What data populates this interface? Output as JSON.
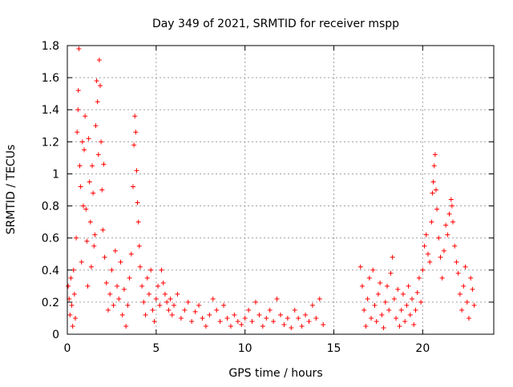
{
  "chart_data": {
    "type": "scatter",
    "title": "Day 349 of 2021, SRMTID for receiver mspp",
    "xlabel": "GPS time / hours",
    "ylabel": "SRMTID / TECUs",
    "xlim": [
      0,
      24
    ],
    "ylim": [
      0,
      1.8
    ],
    "xticks": [
      0,
      5,
      10,
      15,
      20
    ],
    "xtick_labels": [
      "0",
      "5",
      "10",
      "15",
      "20"
    ],
    "yticks": [
      0,
      0.2,
      0.4,
      0.6,
      0.8,
      1.0,
      1.2,
      1.4,
      1.6,
      1.8
    ],
    "ytick_labels": [
      "0",
      "0.2",
      "0.4",
      "0.6",
      "0.8",
      "1",
      "1.2",
      "1.4",
      "1.6",
      "1.8"
    ],
    "grid": true,
    "marker": "+",
    "marker_color": "#ff0000",
    "series": [
      {
        "name": "SRMTID",
        "points": [
          [
            0.05,
            0.3
          ],
          [
            0.1,
            0.22
          ],
          [
            0.15,
            0.12
          ],
          [
            0.2,
            0.35
          ],
          [
            0.25,
            0.18
          ],
          [
            0.3,
            0.05
          ],
          [
            0.35,
            0.4
          ],
          [
            0.4,
            0.25
          ],
          [
            0.45,
            0.1
          ],
          [
            0.5,
            0.6
          ],
          [
            0.55,
            1.26
          ],
          [
            0.6,
            1.4
          ],
          [
            0.62,
            1.52
          ],
          [
            0.65,
            1.78
          ],
          [
            0.7,
            1.05
          ],
          [
            0.75,
            0.92
          ],
          [
            0.8,
            0.45
          ],
          [
            0.85,
            1.2
          ],
          [
            0.9,
            0.8
          ],
          [
            0.95,
            1.15
          ],
          [
            1.0,
            1.36
          ],
          [
            1.05,
            0.78
          ],
          [
            1.1,
            0.58
          ],
          [
            1.15,
            0.3
          ],
          [
            1.2,
            1.22
          ],
          [
            1.25,
            0.95
          ],
          [
            1.3,
            0.7
          ],
          [
            1.35,
            0.42
          ],
          [
            1.4,
            1.05
          ],
          [
            1.45,
            0.88
          ],
          [
            1.5,
            0.55
          ],
          [
            1.55,
            0.62
          ],
          [
            1.6,
            1.3
          ],
          [
            1.65,
            1.58
          ],
          [
            1.7,
            1.45
          ],
          [
            1.75,
            1.12
          ],
          [
            1.8,
            1.71
          ],
          [
            1.85,
            1.55
          ],
          [
            1.9,
            1.2
          ],
          [
            1.95,
            0.9
          ],
          [
            2.0,
            0.65
          ],
          [
            2.05,
            1.06
          ],
          [
            2.1,
            0.48
          ],
          [
            2.2,
            0.32
          ],
          [
            2.3,
            0.15
          ],
          [
            2.4,
            0.25
          ],
          [
            2.5,
            0.4
          ],
          [
            2.6,
            0.18
          ],
          [
            2.7,
            0.52
          ],
          [
            2.8,
            0.3
          ],
          [
            2.9,
            0.22
          ],
          [
            3.0,
            0.45
          ],
          [
            3.1,
            0.12
          ],
          [
            3.2,
            0.28
          ],
          [
            3.3,
            0.05
          ],
          [
            3.4,
            0.18
          ],
          [
            3.5,
            0.35
          ],
          [
            3.6,
            0.5
          ],
          [
            3.7,
            0.92
          ],
          [
            3.75,
            1.18
          ],
          [
            3.8,
            1.36
          ],
          [
            3.85,
            1.26
          ],
          [
            3.9,
            1.02
          ],
          [
            3.95,
            0.82
          ],
          [
            4.0,
            0.7
          ],
          [
            4.05,
            0.55
          ],
          [
            4.1,
            0.42
          ],
          [
            4.2,
            0.3
          ],
          [
            4.3,
            0.2
          ],
          [
            4.4,
            0.12
          ],
          [
            4.5,
            0.35
          ],
          [
            4.6,
            0.25
          ],
          [
            4.7,
            0.4
          ],
          [
            4.8,
            0.15
          ],
          [
            4.9,
            0.08
          ],
          [
            5.0,
            0.22
          ],
          [
            5.1,
            0.3
          ],
          [
            5.2,
            0.18
          ],
          [
            5.3,
            0.4
          ],
          [
            5.4,
            0.32
          ],
          [
            5.5,
            0.25
          ],
          [
            5.6,
            0.2
          ],
          [
            5.7,
            0.15
          ],
          [
            5.8,
            0.22
          ],
          [
            5.9,
            0.12
          ],
          [
            6.0,
            0.18
          ],
          [
            6.2,
            0.25
          ],
          [
            6.4,
            0.1
          ],
          [
            6.6,
            0.15
          ],
          [
            6.8,
            0.2
          ],
          [
            7.0,
            0.08
          ],
          [
            7.2,
            0.14
          ],
          [
            7.4,
            0.18
          ],
          [
            7.6,
            0.1
          ],
          [
            7.8,
            0.05
          ],
          [
            8.0,
            0.12
          ],
          [
            8.2,
            0.22
          ],
          [
            8.4,
            0.15
          ],
          [
            8.6,
            0.08
          ],
          [
            8.8,
            0.18
          ],
          [
            9.0,
            0.1
          ],
          [
            9.2,
            0.05
          ],
          [
            9.4,
            0.12
          ],
          [
            9.6,
            0.08
          ],
          [
            9.8,
            0.06
          ],
          [
            10.0,
            0.1
          ],
          [
            10.2,
            0.15
          ],
          [
            10.4,
            0.08
          ],
          [
            10.6,
            0.2
          ],
          [
            10.8,
            0.12
          ],
          [
            11.0,
            0.05
          ],
          [
            11.2,
            0.1
          ],
          [
            11.4,
            0.15
          ],
          [
            11.6,
            0.08
          ],
          [
            11.8,
            0.22
          ],
          [
            12.0,
            0.12
          ],
          [
            12.2,
            0.06
          ],
          [
            12.4,
            0.1
          ],
          [
            12.6,
            0.04
          ],
          [
            12.8,
            0.15
          ],
          [
            13.0,
            0.1
          ],
          [
            13.2,
            0.05
          ],
          [
            13.4,
            0.12
          ],
          [
            13.6,
            0.08
          ],
          [
            13.8,
            0.18
          ],
          [
            14.0,
            0.1
          ],
          [
            14.2,
            0.22
          ],
          [
            14.4,
            0.06
          ],
          [
            16.5,
            0.42
          ],
          [
            16.6,
            0.3
          ],
          [
            16.7,
            0.15
          ],
          [
            16.8,
            0.05
          ],
          [
            16.9,
            0.22
          ],
          [
            17.0,
            0.35
          ],
          [
            17.1,
            0.1
          ],
          [
            17.2,
            0.4
          ],
          [
            17.3,
            0.18
          ],
          [
            17.4,
            0.08
          ],
          [
            17.5,
            0.25
          ],
          [
            17.6,
            0.32
          ],
          [
            17.7,
            0.12
          ],
          [
            17.8,
            0.04
          ],
          [
            17.9,
            0.2
          ],
          [
            18.0,
            0.3
          ],
          [
            18.1,
            0.15
          ],
          [
            18.2,
            0.38
          ],
          [
            18.3,
            0.48
          ],
          [
            18.4,
            0.22
          ],
          [
            18.5,
            0.1
          ],
          [
            18.6,
            0.28
          ],
          [
            18.7,
            0.05
          ],
          [
            18.8,
            0.15
          ],
          [
            18.9,
            0.25
          ],
          [
            19.0,
            0.08
          ],
          [
            19.1,
            0.18
          ],
          [
            19.2,
            0.3
          ],
          [
            19.3,
            0.12
          ],
          [
            19.4,
            0.22
          ],
          [
            19.5,
            0.06
          ],
          [
            19.6,
            0.15
          ],
          [
            19.7,
            0.26
          ],
          [
            19.8,
            0.35
          ],
          [
            19.9,
            0.2
          ],
          [
            20.0,
            0.4
          ],
          [
            20.1,
            0.55
          ],
          [
            20.2,
            0.62
          ],
          [
            20.3,
            0.5
          ],
          [
            20.4,
            0.45
          ],
          [
            20.5,
            0.7
          ],
          [
            20.55,
            0.88
          ],
          [
            20.6,
            0.95
          ],
          [
            20.65,
            1.05
          ],
          [
            20.7,
            1.12
          ],
          [
            20.75,
            0.9
          ],
          [
            20.8,
            0.78
          ],
          [
            20.9,
            0.6
          ],
          [
            21.0,
            0.48
          ],
          [
            21.1,
            0.35
          ],
          [
            21.2,
            0.52
          ],
          [
            21.3,
            0.68
          ],
          [
            21.4,
            0.62
          ],
          [
            21.5,
            0.75
          ],
          [
            21.6,
            0.84
          ],
          [
            21.65,
            0.8
          ],
          [
            21.7,
            0.7
          ],
          [
            21.8,
            0.55
          ],
          [
            21.9,
            0.45
          ],
          [
            22.0,
            0.38
          ],
          [
            22.1,
            0.25
          ],
          [
            22.2,
            0.15
          ],
          [
            22.3,
            0.3
          ],
          [
            22.4,
            0.42
          ],
          [
            22.5,
            0.2
          ],
          [
            22.6,
            0.1
          ],
          [
            22.7,
            0.35
          ],
          [
            22.8,
            0.28
          ],
          [
            22.9,
            0.18
          ]
        ]
      }
    ]
  }
}
